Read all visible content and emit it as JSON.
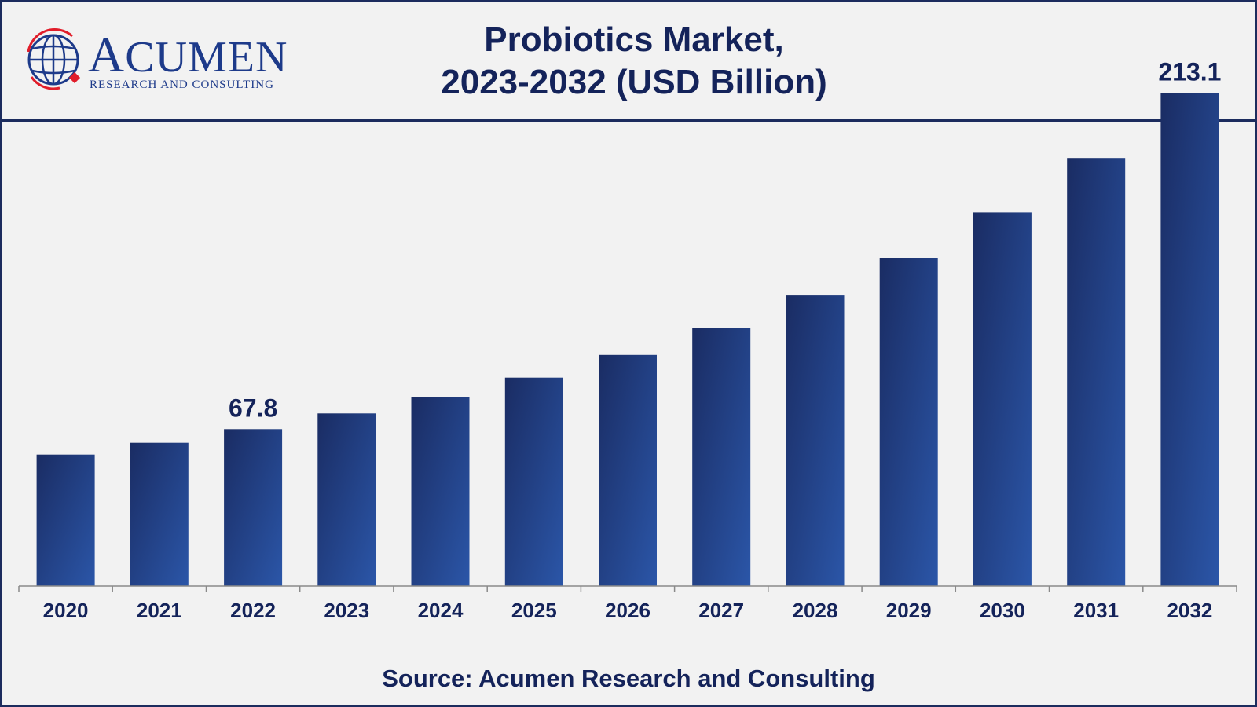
{
  "header": {
    "logo_name": "ACUMEN",
    "logo_tagline": "RESEARCH AND CONSULTING",
    "logo_icon": "globe-icon",
    "title_line1": "Probiotics Market,",
    "title_line2": "2023-2032 (USD Billion)"
  },
  "colors": {
    "bar_dark": "#1a2c63",
    "bar_light": "#2b56a8",
    "text": "#14235a",
    "logo_blue": "#1d3a8a",
    "logo_red": "#e11d2a"
  },
  "chart_data": {
    "type": "bar",
    "categories": [
      "2020",
      "2021",
      "2022",
      "2023",
      "2024",
      "2025",
      "2026",
      "2027",
      "2028",
      "2029",
      "2030",
      "2031",
      "2032"
    ],
    "values": [
      56.8,
      61.9,
      67.8,
      74.6,
      81.6,
      90.1,
      99.9,
      111.5,
      125.6,
      141.9,
      161.5,
      185.0,
      213.1
    ],
    "data_labels": [
      {
        "category": "2022",
        "text": "67.8"
      },
      {
        "category": "2032",
        "text": "213.1"
      }
    ],
    "ylim": [
      0,
      245
    ],
    "grid": false,
    "legend": "none"
  },
  "footer": {
    "source": "Source: Acumen Research and Consulting"
  }
}
